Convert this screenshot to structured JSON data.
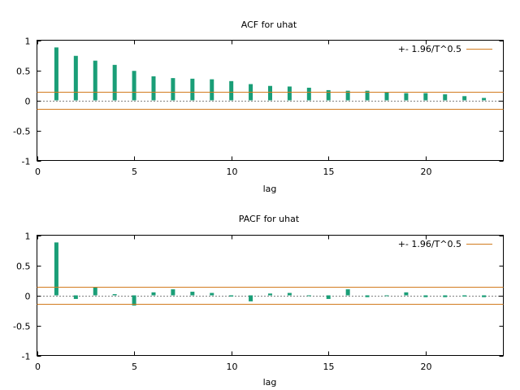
{
  "colors": {
    "bar": "#1a9e77",
    "band": "#d27b1f",
    "axis": "#000000",
    "background": "#ffffff"
  },
  "chart_data": [
    {
      "type": "bar",
      "id": "acf",
      "title": "ACF for uhat",
      "xlabel": "lag",
      "ylabel": "",
      "xlim": [
        0,
        24
      ],
      "ylim": [
        -1,
        1
      ],
      "xticks": [
        0,
        5,
        10,
        15,
        20
      ],
      "xtick_labels": [
        "0",
        "5",
        "10",
        "15",
        "20"
      ],
      "yticks": [
        -1,
        -0.5,
        0,
        0.5,
        1
      ],
      "ytick_labels": [
        "-1",
        "-0.5",
        "0",
        "0.5",
        "1"
      ],
      "grid": false,
      "legend": {
        "label": "+- 1.96/T^0.5",
        "position": "top-right"
      },
      "band": 0.14,
      "x": [
        1,
        2,
        3,
        4,
        5,
        6,
        7,
        8,
        9,
        10,
        11,
        12,
        13,
        14,
        15,
        16,
        17,
        18,
        19,
        20,
        21,
        22,
        23
      ],
      "values": [
        0.88,
        0.74,
        0.66,
        0.59,
        0.49,
        0.4,
        0.37,
        0.36,
        0.35,
        0.32,
        0.27,
        0.24,
        0.23,
        0.21,
        0.17,
        0.16,
        0.16,
        0.14,
        0.12,
        0.12,
        0.1,
        0.07,
        0.04
      ]
    },
    {
      "type": "bar",
      "id": "pacf",
      "title": "PACF for uhat",
      "xlabel": "lag",
      "ylabel": "",
      "xlim": [
        0,
        24
      ],
      "ylim": [
        -1,
        1
      ],
      "xticks": [
        0,
        5,
        10,
        15,
        20
      ],
      "xtick_labels": [
        "0",
        "5",
        "10",
        "15",
        "20"
      ],
      "yticks": [
        -1,
        -0.5,
        0,
        0.5,
        1
      ],
      "ytick_labels": [
        "-1",
        "-0.5",
        "0",
        "0.5",
        "1"
      ],
      "grid": false,
      "legend": {
        "label": "+- 1.96/T^0.5",
        "position": "top-right"
      },
      "band": 0.14,
      "x": [
        1,
        2,
        3,
        4,
        5,
        6,
        7,
        8,
        9,
        10,
        11,
        12,
        13,
        14,
        15,
        16,
        17,
        18,
        19,
        20,
        21,
        22,
        23
      ],
      "values": [
        0.88,
        -0.06,
        0.13,
        0.02,
        -0.17,
        0.05,
        0.1,
        0.06,
        0.04,
        -0.02,
        -0.1,
        0.03,
        0.04,
        0.0,
        -0.06,
        0.1,
        -0.03,
        -0.01,
        0.05,
        -0.03,
        -0.03,
        -0.02,
        -0.03
      ]
    }
  ]
}
